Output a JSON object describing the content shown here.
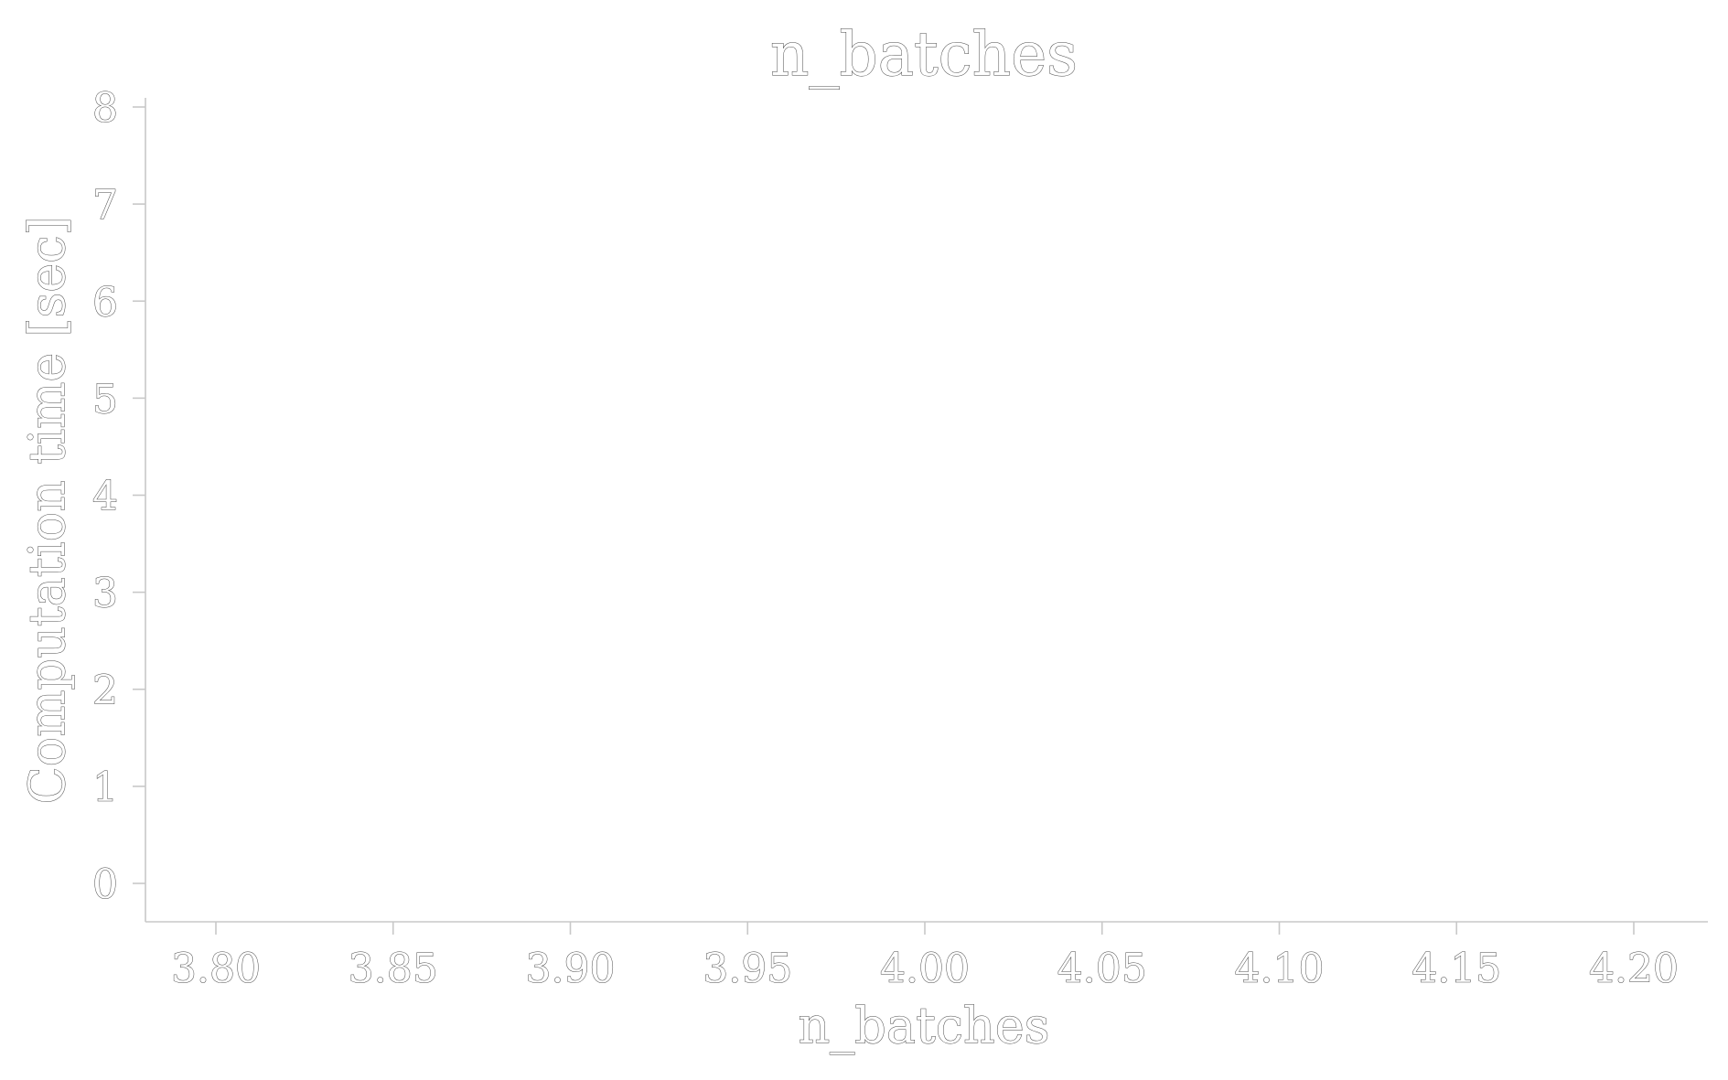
{
  "chart_data": {
    "type": "scatter",
    "title": "n_batches",
    "xlabel": "n_batches",
    "ylabel": "Computation time [sec]",
    "xlim": [
      3.78,
      4.22
    ],
    "ylim": [
      -0.4,
      8.1
    ],
    "x_ticks": [
      "3.80",
      "3.85",
      "3.90",
      "3.95",
      "4.00",
      "4.05",
      "4.10",
      "4.15",
      "4.20"
    ],
    "x_tick_values": [
      3.8,
      3.85,
      3.9,
      3.95,
      4.0,
      4.05,
      4.1,
      4.15,
      4.2
    ],
    "y_ticks": [
      "0",
      "1",
      "2",
      "3",
      "4",
      "5",
      "6",
      "7",
      "8"
    ],
    "y_tick_values": [
      0,
      1,
      2,
      3,
      4,
      5,
      6,
      7,
      8
    ],
    "grid": false,
    "series": []
  }
}
